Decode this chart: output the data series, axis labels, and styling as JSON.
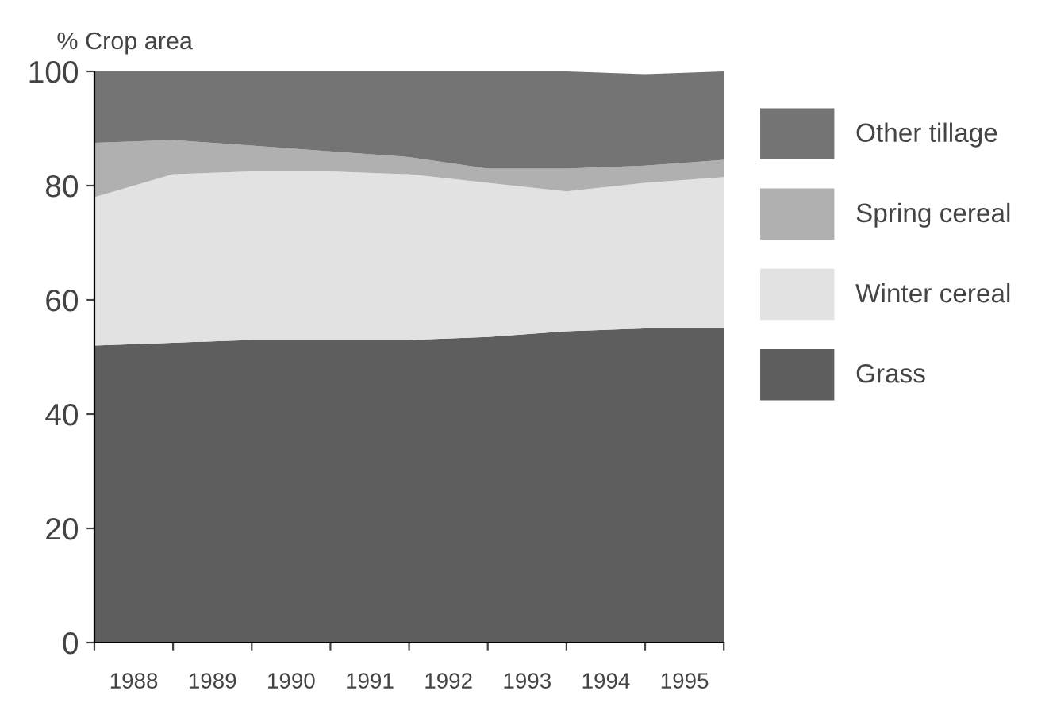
{
  "chart_data": {
    "type": "area",
    "stacked": true,
    "ylabel": "% Crop area",
    "x": [
      1988,
      1989,
      1990,
      1991,
      1992,
      1993,
      1994,
      1995,
      1996
    ],
    "series": [
      {
        "name": "Grass",
        "color": "#5e5e5e",
        "values": [
          52,
          52.5,
          53,
          53,
          53,
          53.5,
          54.5,
          55,
          55
        ]
      },
      {
        "name": "Winter cereal",
        "color": "#e2e2e2",
        "values": [
          26,
          29.5,
          29.5,
          29.5,
          29,
          27,
          24.5,
          25.5,
          26.5
        ]
      },
      {
        "name": "Spring cereal",
        "color": "#b0b0b0",
        "values": [
          9.5,
          6,
          4.5,
          3.5,
          3,
          2.5,
          4,
          3,
          3
        ]
      },
      {
        "name": "Other tillage",
        "color": "#747474",
        "values": [
          12.5,
          12,
          13,
          14,
          15,
          17,
          17,
          16,
          15.5
        ]
      }
    ],
    "xlim": [
      1988,
      1996
    ],
    "ylim": [
      0,
      100
    ],
    "yticks": [
      0,
      20,
      40,
      60,
      80,
      100
    ],
    "xticks": [
      {
        "value": 1988,
        "label": null
      },
      {
        "value": 1988.5,
        "label": "1988"
      },
      {
        "value": 1989,
        "label": null
      },
      {
        "value": 1989.5,
        "label": "1989"
      },
      {
        "value": 1990,
        "label": null
      },
      {
        "value": 1990.5,
        "label": "1990"
      },
      {
        "value": 1991,
        "label": null
      },
      {
        "value": 1991.5,
        "label": "1991"
      },
      {
        "value": 1992,
        "label": null
      },
      {
        "value": 1992.5,
        "label": "1992"
      },
      {
        "value": 1993,
        "label": null
      },
      {
        "value": 1993.5,
        "label": "1993"
      },
      {
        "value": 1994,
        "label": null
      },
      {
        "value": 1994.5,
        "label": "1994"
      },
      {
        "value": 1995,
        "label": null
      },
      {
        "value": 1995.5,
        "label": "1995"
      },
      {
        "value": 1996,
        "label": null
      }
    ],
    "grid": false,
    "legend": "right"
  }
}
